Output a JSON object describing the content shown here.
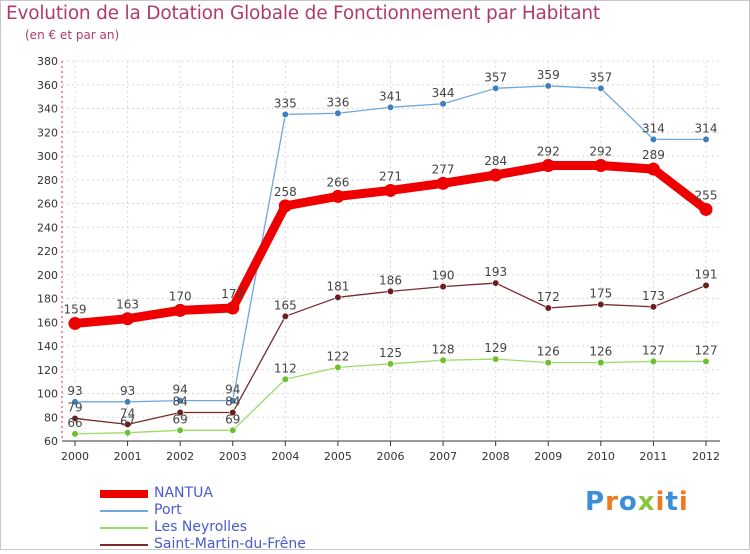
{
  "title": "Evolution de la Dotation Globale de Fonctionnement par Habitant",
  "subtitle": "(en € et par an)",
  "logo": {
    "text": "Proxiti",
    "colors": [
      "#3a8fd8",
      "#f07820",
      "#3a8fd8",
      "#8cc63f",
      "#f07820",
      "#3a8fd8",
      "#f07820"
    ]
  },
  "chart_data": {
    "type": "line",
    "title": "Evolution de la Dotation Globale de Fonctionnement par Habitant",
    "ylabel": "(en € et par an)",
    "xlabel": "",
    "ylim": [
      60,
      380
    ],
    "yticks": [
      60,
      80,
      100,
      120,
      140,
      160,
      180,
      200,
      220,
      240,
      260,
      280,
      300,
      320,
      340,
      360,
      380
    ],
    "grid": true,
    "legend_position": "bottom-left",
    "categories": [
      "2000",
      "2001",
      "2002",
      "2003",
      "2004",
      "2005",
      "2006",
      "2007",
      "2008",
      "2009",
      "2010",
      "2011",
      "2012"
    ],
    "series": [
      {
        "name": "NANTUA",
        "color": "#ee0000",
        "marker": "#ee0000",
        "weight": "thick",
        "values": [
          159,
          163,
          170,
          172,
          258,
          266,
          271,
          277,
          284,
          292,
          292,
          289,
          255
        ],
        "labels": [
          "159",
          "163",
          "170",
          "172",
          "258",
          "266",
          "271",
          "277",
          "284",
          "292",
          "292",
          "289",
          "255"
        ]
      },
      {
        "name": "Port",
        "color": "#6fa8dc",
        "marker": "#3d7fc0",
        "weight": "thin",
        "values": [
          93,
          93,
          94,
          94,
          335,
          336,
          341,
          344,
          357,
          359,
          357,
          314,
          314
        ],
        "labels": [
          "93",
          "93",
          "94",
          "94",
          "335",
          "336",
          "341",
          "344",
          "357",
          "359",
          "357",
          "314",
          "314"
        ]
      },
      {
        "name": "Les Neyrolles",
        "color": "#99dd66",
        "marker": "#6cc030",
        "weight": "thin",
        "values": [
          66,
          67,
          69,
          69,
          112,
          122,
          125,
          128,
          129,
          126,
          126,
          127,
          127
        ],
        "labels": [
          "66",
          "67",
          "69",
          "69",
          "112",
          "122",
          "125",
          "128",
          "129",
          "126",
          "126",
          "127",
          "127"
        ]
      },
      {
        "name": "Saint-Martin-du-Frêne",
        "color": "#7a2a2a",
        "marker": "#6a1f1f",
        "weight": "thin",
        "values": [
          79,
          74,
          84,
          84,
          165,
          181,
          186,
          190,
          193,
          172,
          175,
          173,
          191
        ],
        "labels": [
          "79",
          "74",
          "84",
          "84",
          "165",
          "181",
          "186",
          "190",
          "193",
          "172",
          "175",
          "173",
          "191"
        ]
      }
    ]
  }
}
